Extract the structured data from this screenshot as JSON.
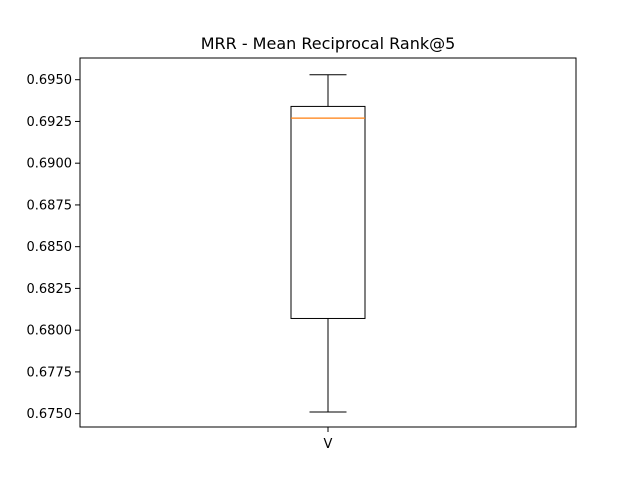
{
  "chart_data": {
    "type": "box",
    "title": "MRR - Mean Reciprocal Rank@5",
    "xlabel": "",
    "ylabel": "",
    "categories": [
      "V"
    ],
    "ylim": [
      0.6742,
      0.6963
    ],
    "yticks": [
      0.675,
      0.6775,
      0.68,
      0.6825,
      0.685,
      0.6875,
      0.69,
      0.6925,
      0.695
    ],
    "ytick_labels": [
      "0.6750",
      "0.6775",
      "0.6800",
      "0.6825",
      "0.6850",
      "0.6875",
      "0.6900",
      "0.6925",
      "0.6950"
    ],
    "boxes": [
      {
        "category": "V",
        "whisker_low": 0.6751,
        "q1": 0.6807,
        "median": 0.6927,
        "q3": 0.6934,
        "whisker_high": 0.6953
      }
    ],
    "grid": false,
    "colors": {
      "box": "#000000",
      "median": "#ff7f0e",
      "whisker": "#000000"
    }
  }
}
